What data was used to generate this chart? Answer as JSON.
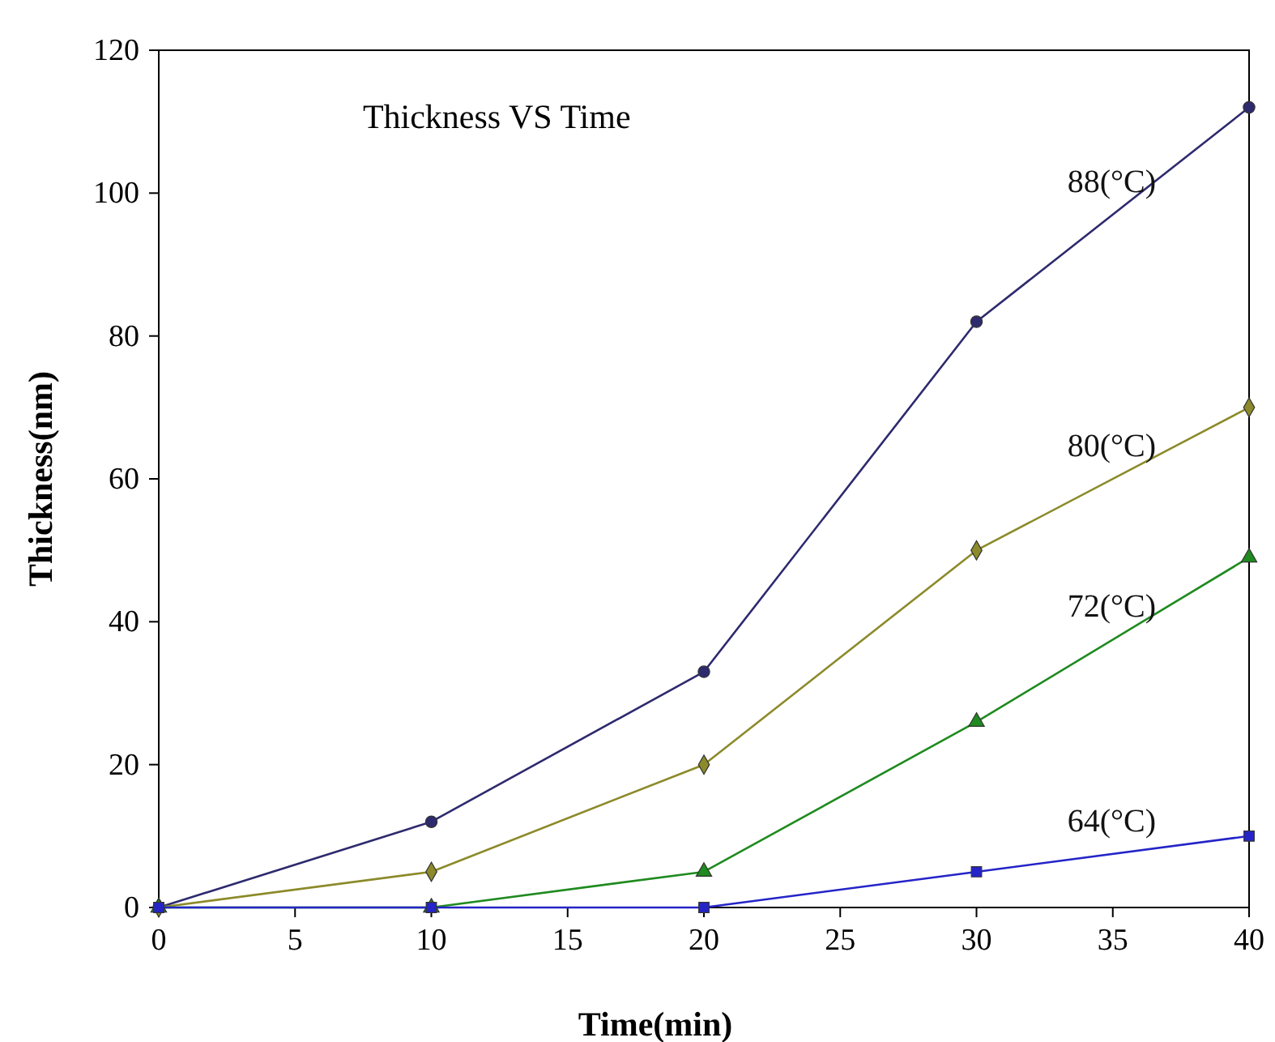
{
  "chart_data": {
    "type": "line",
    "title": "Thickness VS Time",
    "xlabel": "Time(min)",
    "ylabel": "Thickness(nm)",
    "x": [
      0,
      10,
      20,
      30,
      40
    ],
    "series": [
      {
        "name": "88(°C)",
        "color": "#2e2a6e",
        "marker": "circle",
        "values": [
          0,
          12,
          33,
          82,
          112
        ]
      },
      {
        "name": "80(°C)",
        "color": "#8c8a2a",
        "marker": "diamond",
        "values": [
          0,
          5,
          20,
          50,
          70
        ]
      },
      {
        "name": "72(°C)",
        "color": "#1f8a1f",
        "marker": "triangle",
        "values": [
          0,
          0,
          5,
          26,
          49
        ]
      },
      {
        "name": "64(°C)",
        "color": "#2424c8",
        "marker": "square",
        "values": [
          0,
          0,
          0,
          5,
          10
        ]
      }
    ],
    "xlim": [
      0,
      40
    ],
    "xticks": [
      0,
      5,
      10,
      15,
      20,
      25,
      30,
      35,
      40
    ],
    "ylim": [
      0,
      120
    ],
    "yticks": [
      0,
      20,
      40,
      60,
      80,
      100,
      120
    ],
    "grid": false,
    "line_style": "solid"
  }
}
